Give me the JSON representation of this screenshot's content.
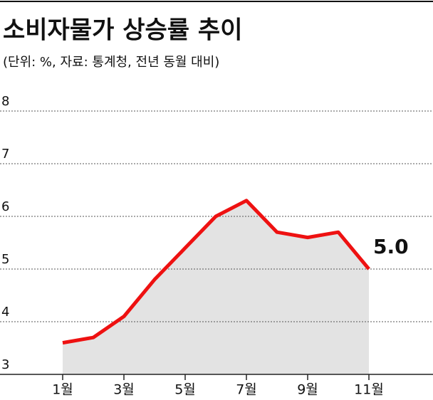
{
  "chart_data": {
    "type": "line",
    "title": "소비자물가 상승률 추이",
    "subtitle": "(단위: %, 자료: 통계청, 전년 동월 대비)",
    "categories": [
      "1월",
      null,
      "3월",
      null,
      "5월",
      null,
      "7월",
      null,
      "9월",
      null,
      "11월"
    ],
    "values": [
      3.6,
      3.7,
      4.1,
      4.8,
      5.4,
      6.0,
      6.3,
      5.7,
      5.6,
      5.7,
      5.0
    ],
    "value_labels": [
      null,
      null,
      null,
      null,
      null,
      null,
      null,
      null,
      null,
      null,
      "5.0"
    ],
    "color": "#ee1111",
    "area_color": "#e3e3e3",
    "ylim": [
      3,
      8
    ],
    "yticks": [
      3,
      4,
      5,
      6,
      7,
      8
    ],
    "grid": true
  }
}
